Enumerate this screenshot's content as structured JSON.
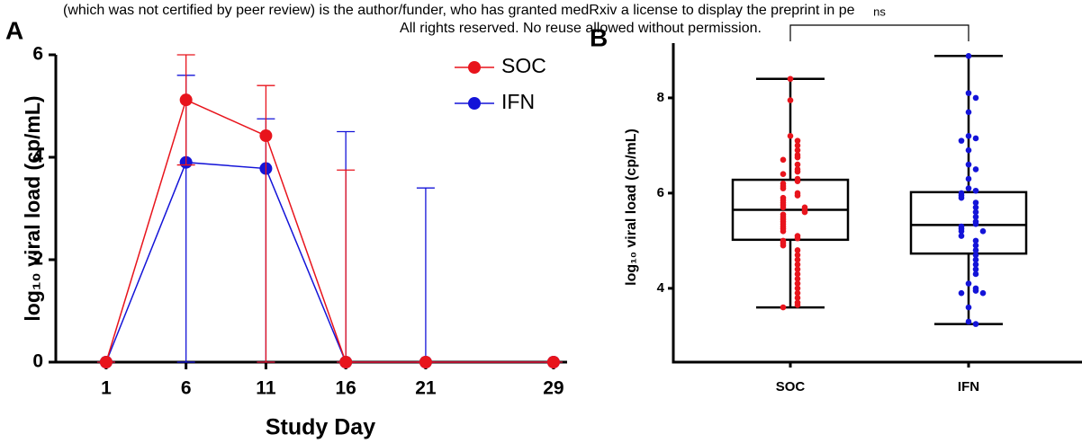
{
  "header": {
    "line1": "(which was not certified by peer review) is the author/funder, who has granted medRxiv a license to display the preprint in pe",
    "line2": "All rights reserved. No reuse allowed without permission."
  },
  "chart_data": [
    {
      "type": "line",
      "panel_label": "A",
      "x_label": "Study Day",
      "y_label": "log₁₀ viral load (cp/mL)",
      "x": [
        1,
        6,
        11,
        16,
        21,
        29
      ],
      "xlim": [
        -2.15,
        29.85
      ],
      "xticks": [
        1,
        6,
        11,
        16,
        21,
        29
      ],
      "ylim": [
        0,
        6
      ],
      "yticks": [
        0,
        2,
        4,
        6
      ],
      "legend": "upper right",
      "series": [
        {
          "name": "SOC",
          "color": "#e8141c",
          "values": [
            0,
            5.12,
            4.42,
            0,
            0,
            0
          ],
          "err_plus": [
            0,
            0.88,
            0.98,
            3.75,
            0,
            0
          ],
          "err_minus": [
            0,
            1.27,
            4.42,
            0,
            0,
            0
          ]
        },
        {
          "name": "IFN",
          "color": "#1414d8",
          "values": [
            0,
            3.9,
            3.78,
            0,
            0,
            0
          ],
          "err_plus": [
            0,
            1.7,
            0.97,
            4.5,
            3.4,
            0
          ],
          "err_minus": [
            0,
            3.9,
            3.78,
            0,
            0,
            0
          ]
        }
      ]
    },
    {
      "type": "box",
      "panel_label": "B",
      "y_label": "log₁₀ viral load (cp/mL)",
      "annotation": "ns",
      "categories": [
        "SOC",
        "IFN"
      ],
      "ylim": [
        2.45,
        9.15
      ],
      "yticks": [
        4,
        6,
        8
      ],
      "series": [
        {
          "name": "SOC",
          "color": "#e8141c",
          "min": 3.6,
          "q1": 5.02,
          "median": 5.65,
          "q3": 6.28,
          "max": 8.4,
          "values": [
            8.4,
            7.95,
            7.2,
            7.1,
            7.0,
            6.9,
            6.8,
            6.75,
            6.7,
            6.6,
            6.5,
            6.45,
            6.4,
            6.3,
            6.25,
            6.2,
            6.15,
            6.1,
            6.0,
            5.95,
            5.9,
            5.85,
            5.8,
            5.75,
            5.7,
            5.7,
            5.65,
            5.6,
            5.55,
            5.5,
            5.45,
            5.4,
            5.35,
            5.3,
            5.25,
            5.2,
            5.1,
            5.05,
            5.0,
            4.95,
            4.9,
            4.8,
            4.7,
            4.6,
            4.5,
            4.4,
            4.3,
            4.2,
            4.1,
            4.0,
            3.9,
            3.8,
            3.7,
            3.65,
            3.6
          ]
        },
        {
          "name": "IFN",
          "color": "#1414d8",
          "min": 3.25,
          "q1": 4.73,
          "median": 5.33,
          "q3": 6.02,
          "max": 8.88,
          "values": [
            8.88,
            8.1,
            8.0,
            7.7,
            7.2,
            7.15,
            7.1,
            6.9,
            6.6,
            6.5,
            6.3,
            6.1,
            6.05,
            6.0,
            5.95,
            5.9,
            5.8,
            5.7,
            5.6,
            5.5,
            5.4,
            5.35,
            5.3,
            5.25,
            5.2,
            5.2,
            5.1,
            5.0,
            4.9,
            4.8,
            4.7,
            4.6,
            4.5,
            4.4,
            4.3,
            4.1,
            4.0,
            3.95,
            3.9,
            3.9,
            3.6,
            3.3,
            3.25
          ]
        }
      ]
    }
  ]
}
